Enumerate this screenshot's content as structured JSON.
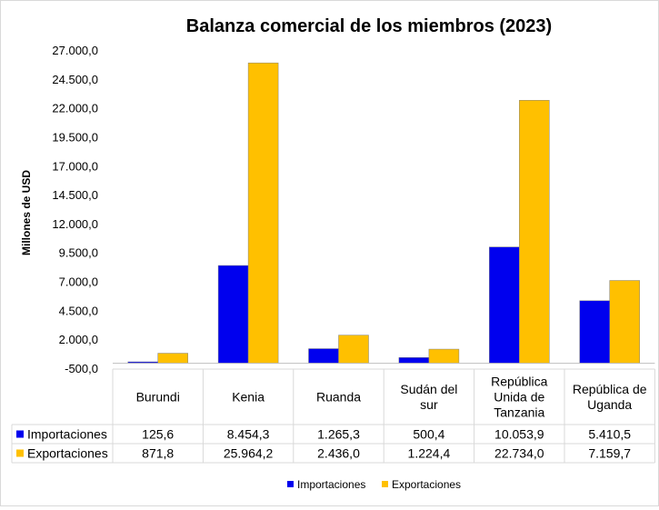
{
  "chart_data": {
    "type": "bar",
    "title": "Balanza comercial de los miembros (2023)",
    "ylabel": "Millones de USD",
    "xlabel": "",
    "ylim": [
      -500,
      27000
    ],
    "y_ticks": [
      "27.000,0",
      "24.500,0",
      "22.000,0",
      "19.500,0",
      "17.000,0",
      "14.500,0",
      "12.000,0",
      "9.500,0",
      "7.000,0",
      "4.500,0",
      "2.000,0",
      "-500,0"
    ],
    "y_tick_values": [
      27000,
      24500,
      22000,
      19500,
      17000,
      14500,
      12000,
      9500,
      7000,
      4500,
      2000,
      -500
    ],
    "categories": [
      [
        "Burundi"
      ],
      [
        "Kenia"
      ],
      [
        "Ruanda"
      ],
      [
        "Sudán del",
        "sur"
      ],
      [
        "República",
        "Unida de",
        "Tanzania"
      ],
      [
        "República de",
        "Uganda"
      ]
    ],
    "series": [
      {
        "name": "Importaciones",
        "color": "#0000ee",
        "values": [
          125.6,
          8454.3,
          1265.3,
          500.4,
          10053.9,
          5410.5
        ],
        "labels": [
          "125,6",
          "8.454,3",
          "1.265,3",
          "500,4",
          "10.053,9",
          "5.410,5"
        ]
      },
      {
        "name": "Exportaciones",
        "color": "#ffc000",
        "values": [
          871.8,
          25964.2,
          2436.0,
          1224.4,
          22734.0,
          7159.7
        ],
        "labels": [
          "871,8",
          "25.964,2",
          "2.436,0",
          "1.224,4",
          "22.734,0",
          "7.159,7"
        ]
      }
    ],
    "legend_position": "bottom",
    "grid": false,
    "data_table": true
  }
}
